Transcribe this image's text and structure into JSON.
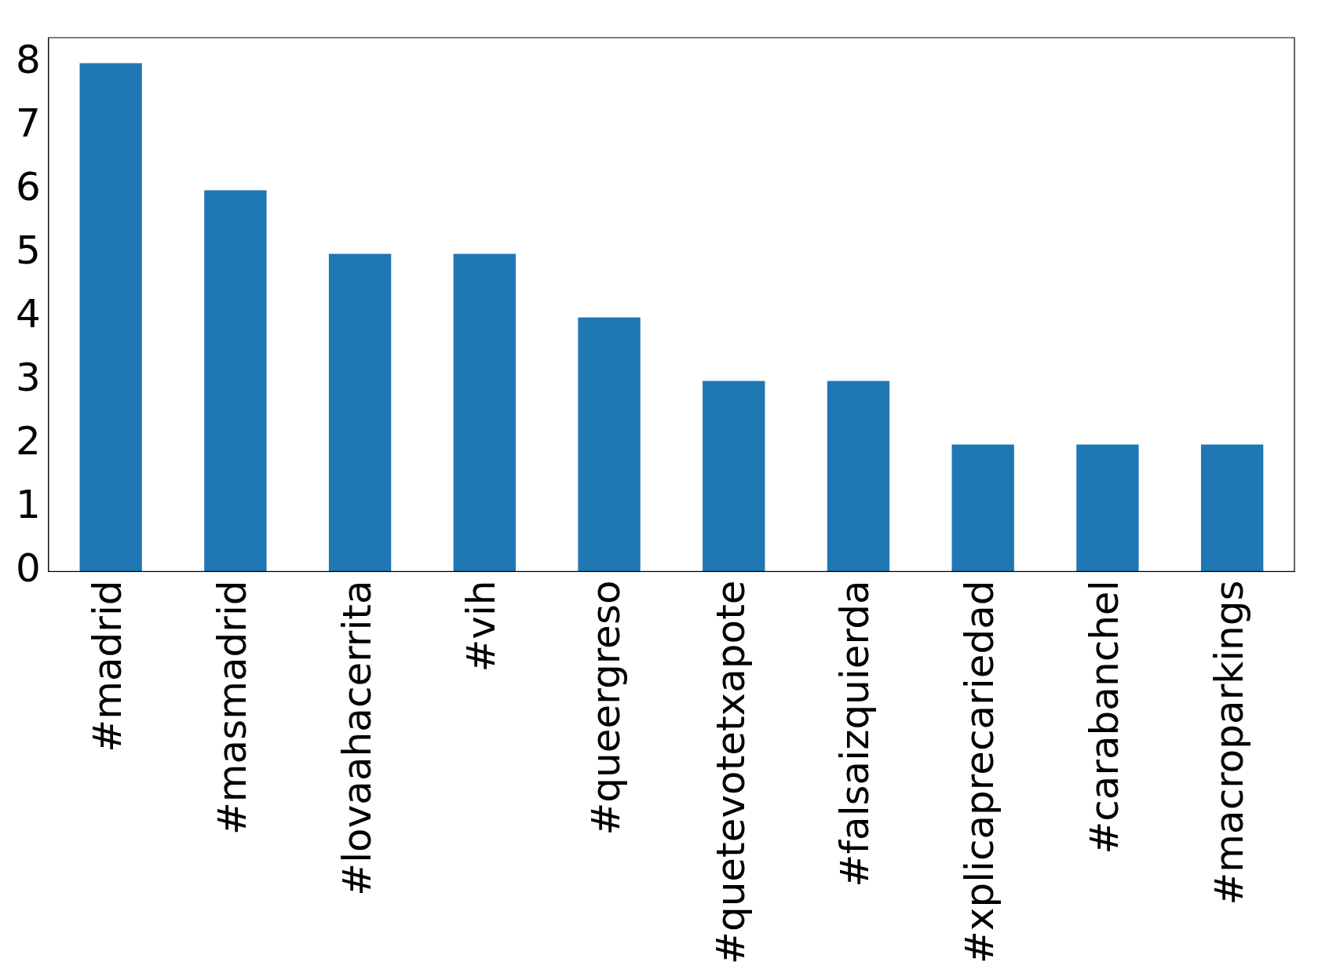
{
  "chart_data": {
    "type": "bar",
    "categories": [
      "#madrid",
      "#masmadrid",
      "#lovaahacerrita",
      "#vih",
      "#queergreso",
      "#quetevotetxapote",
      "#falsaizquierda",
      "#xplicaprecariedad",
      "#carabanchel",
      "#macroparkings"
    ],
    "values": [
      8,
      6,
      5,
      5,
      4,
      3,
      3,
      2,
      2,
      2
    ],
    "color": "#1f77b4",
    "ylim": [
      0,
      8.4
    ],
    "yticks": [
      0,
      1,
      2,
      3,
      4,
      5,
      6,
      7,
      8
    ],
    "grid": false,
    "legend": false
  }
}
